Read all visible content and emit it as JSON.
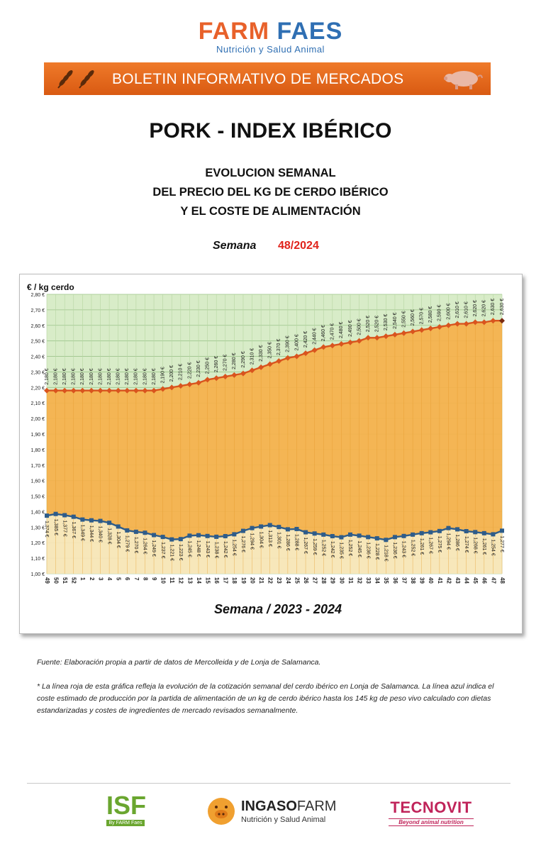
{
  "header": {
    "logo_farm": "FARM",
    "logo_faes": "FAES",
    "logo_sub": "Nutrición y Salud Animal",
    "banner": "BOLETIN INFORMATIVO DE MERCADOS"
  },
  "title": "PORK - INDEX IBÉRICO",
  "subtitle_lines": [
    "EVOLUCION SEMANAL",
    "DEL PRECIO DEL KG DE CERDO IBÉRICO",
    "Y EL COSTE DE ALIMENTACIÓN"
  ],
  "semana_label": "Semana",
  "semana_value": "48/2024",
  "notes": {
    "source": "Fuente: Elaboración propia a partir de datos de Mercolleida y de Lonja de Salamanca.",
    "explanation": "* La línea roja de esta gráfica refleja la evolución de la cotización semanal del cerdo ibérico en Lonja de Salamanca. La línea azul indica el coste estimado de producción por la partida de alimentación de un kg de cerdo ibérico hasta los 145 kg de peso vivo calculado con dietas estandarizadas y costes de ingredientes de mercado revisados semanalmente."
  },
  "footer": {
    "isf": "ISF",
    "isf_sub": "By FARM Faes",
    "ingaso_a": "INGASO",
    "ingaso_b": "FARM",
    "ingaso_sub": "Nutrición y Salud Animal",
    "tecnovit": "TECNOVIT",
    "tecnovit_sub": "Beyond animal nutrition"
  },
  "colors": {
    "orange": "#e8612a",
    "blue": "#2f6fb3",
    "red_series": "#d9541e",
    "blue_series": "#2e5c8a",
    "accent_red": "#e0231b",
    "tecnovit": "#c0245a"
  },
  "chart_data": {
    "type": "area",
    "ylabel": "€ / kg cerdo",
    "xlabel": "Semana / 2023 - 2024",
    "ylim": [
      1.0,
      2.8
    ],
    "yticks": [
      "1,00 €",
      "1,10 €",
      "1,20 €",
      "1,30 €",
      "1,40 €",
      "1,50 €",
      "1,60 €",
      "1,70 €",
      "1,80 €",
      "1,90 €",
      "2,00 €",
      "2,10 €",
      "2,20 €",
      "2,30 €",
      "2,40 €",
      "2,50 €",
      "2,60 €",
      "2,70 €",
      "2,80 €"
    ],
    "grid": true,
    "categories": [
      "49",
      "50",
      "51",
      "52",
      "1",
      "2",
      "3",
      "4",
      "5",
      "6",
      "7",
      "8",
      "9",
      "10",
      "11",
      "12",
      "13",
      "14",
      "15",
      "16",
      "17",
      "18",
      "19",
      "20",
      "21",
      "22",
      "23",
      "24",
      "25",
      "26",
      "27",
      "28",
      "29",
      "30",
      "31",
      "32",
      "33",
      "34",
      "35",
      "36",
      "37",
      "38",
      "39",
      "40",
      "41",
      "42",
      "43",
      "44",
      "45",
      "46",
      "47",
      "48"
    ],
    "series": [
      {
        "values": [
          2.18,
          2.18,
          2.18,
          2.18,
          2.18,
          2.18,
          2.18,
          2.18,
          2.18,
          2.18,
          2.18,
          2.18,
          2.18,
          2.19,
          2.2,
          2.21,
          2.22,
          2.23,
          2.25,
          2.26,
          2.27,
          2.28,
          2.29,
          2.31,
          2.33,
          2.35,
          2.37,
          2.39,
          2.4,
          2.42,
          2.44,
          2.46,
          2.47,
          2.48,
          2.49,
          2.5,
          2.52,
          2.52,
          2.53,
          2.54,
          2.55,
          2.56,
          2.57,
          2.58,
          2.59,
          2.6,
          2.61,
          2.61,
          2.62,
          2.62,
          2.63,
          2.63
        ],
        "labels": [
          "2,180 €",
          "2,180 €",
          "2,180 €",
          "2,180 €",
          "2,180 €",
          "2,180 €",
          "2,180 €",
          "2,180 €",
          "2,180 €",
          "2,180 €",
          "2,180 €",
          "2,180 €",
          "2,180 €",
          "2,190 €",
          "2,200 €",
          "2,210 €",
          "2,220 €",
          "2,230 €",
          "2,250 €",
          "2,260 €",
          "2,270 €",
          "2,280 €",
          "2,290 €",
          "2,310 €",
          "2,330 €",
          "2,350 €",
          "2,370 €",
          "2,390 €",
          "2,400 €",
          "2,420 €",
          "2,440 €",
          "2,460 €",
          "2,470 €",
          "2,480 €",
          "2,490 €",
          "2,500 €",
          "2,520 €",
          "2,520 €",
          "2,530 €",
          "2,540 €",
          "2,550 €",
          "2,560 €",
          "2,570 €",
          "2,580 €",
          "2,590 €",
          "2,600 €",
          "2,610 €",
          "2,610 €",
          "2,620 €",
          "2,620 €",
          "2,630 €",
          "2,630 €"
        ],
        "color": "#d9541e"
      },
      {
        "values": [
          1.374,
          1.385,
          1.377,
          1.367,
          1.349,
          1.344,
          1.34,
          1.328,
          1.304,
          1.279,
          1.27,
          1.264,
          1.249,
          1.237,
          1.221,
          1.223,
          1.245,
          1.248,
          1.243,
          1.238,
          1.242,
          1.254,
          1.276,
          1.294,
          1.304,
          1.313,
          1.301,
          1.286,
          1.288,
          1.267,
          1.259,
          1.252,
          1.242,
          1.235,
          1.252,
          1.245,
          1.236,
          1.228,
          1.218,
          1.236,
          1.243,
          1.252,
          1.261,
          1.267,
          1.275,
          1.294,
          1.286,
          1.274,
          1.268,
          1.261,
          1.254,
          1.277
        ],
        "labels": [
          "1,374 €",
          "1,385 €",
          "1,377 €",
          "1,367 €",
          "1,349 €",
          "1,344 €",
          "1,340 €",
          "1,328 €",
          "1,304 €",
          "1,279 €",
          "1,270 €",
          "1,264 €",
          "1,249 €",
          "1,237 €",
          "1,221 €",
          "1,223 €",
          "1,245 €",
          "1,248 €",
          "1,243 €",
          "1,238 €",
          "1,242 €",
          "1,254 €",
          "1,276 €",
          "1,294 €",
          "1,304 €",
          "1,313 €",
          "1,301 €",
          "1,286 €",
          "1,288 €",
          "1,267 €",
          "1,259 €",
          "1,252 €",
          "1,242 €",
          "1,235 €",
          "1,252 €",
          "1,245 €",
          "1,236 €",
          "1,228 €",
          "1,218 €",
          "1,236 €",
          "1,243 €",
          "1,252 €",
          "1,261 €",
          "1,267 €",
          "1,275 €",
          "1,294 €",
          "1,286 €",
          "1,274 €",
          "1,268 €",
          "1,261 €",
          "1,254 €",
          "1,277 €"
        ],
        "color": "#2e5c8a"
      }
    ]
  }
}
